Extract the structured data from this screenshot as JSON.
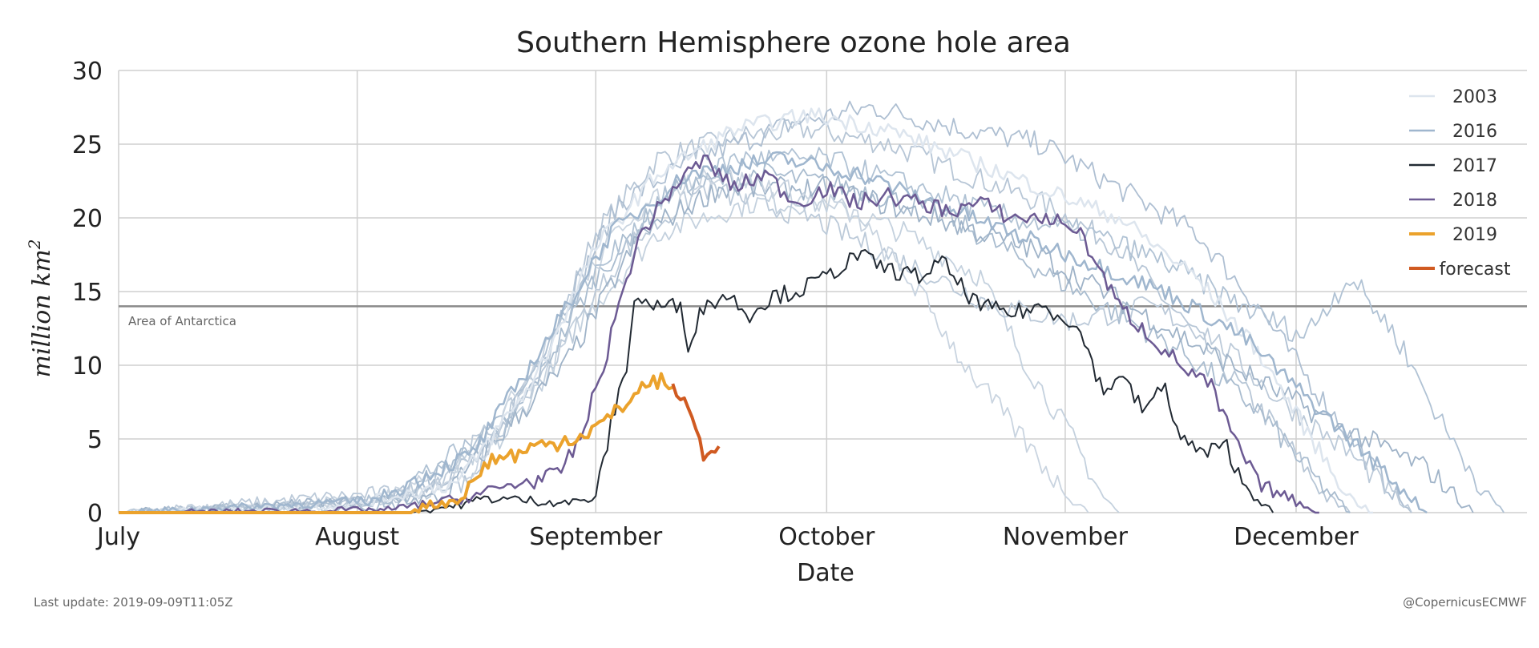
{
  "chart_data": {
    "type": "line",
    "title": "Southern Hemisphere ozone hole area",
    "xlabel": "Date",
    "ylabel": "million km",
    "ylabel_superscript": "2",
    "ylim": [
      0,
      30
    ],
    "yticks": [
      "0",
      "5",
      "10",
      "15",
      "20",
      "25",
      "30"
    ],
    "ytick_values": [
      0,
      5,
      10,
      15,
      20,
      25,
      30
    ],
    "xlim_days": [
      0,
      183
    ],
    "xticks": [
      "July",
      "August",
      "September",
      "October",
      "November",
      "December"
    ],
    "xtick_days": [
      0,
      31,
      62,
      92,
      123,
      153
    ],
    "reference_line": {
      "label": "Area of Antarctica",
      "value": 14,
      "color": "#8a8a8a"
    },
    "background_series": [
      {
        "name": "other years",
        "color": "#b7c6d6",
        "points": [
          [
            0,
            0
          ],
          [
            30,
            0.5
          ],
          [
            45,
            2
          ],
          [
            55,
            10
          ],
          [
            62,
            19
          ],
          [
            70,
            24
          ],
          [
            80,
            25.5
          ],
          [
            90,
            26
          ],
          [
            100,
            25
          ],
          [
            110,
            23
          ],
          [
            120,
            21
          ],
          [
            130,
            18
          ],
          [
            140,
            12
          ],
          [
            150,
            6
          ],
          [
            157,
            1
          ],
          [
            160,
            0
          ]
        ]
      },
      {
        "name": "other years",
        "color": "#aebfd2",
        "points": [
          [
            0,
            0
          ],
          [
            35,
            0.8
          ],
          [
            48,
            4
          ],
          [
            58,
            14
          ],
          [
            65,
            21
          ],
          [
            75,
            24
          ],
          [
            88,
            26.5
          ],
          [
            98,
            27.5
          ],
          [
            110,
            26
          ],
          [
            120,
            25
          ],
          [
            130,
            22
          ],
          [
            140,
            19
          ],
          [
            148,
            14
          ],
          [
            156,
            8
          ],
          [
            163,
            3
          ],
          [
            168,
            0
          ]
        ]
      },
      {
        "name": "other years",
        "color": "#c4d1de",
        "points": [
          [
            0,
            0
          ],
          [
            38,
            1
          ],
          [
            50,
            5
          ],
          [
            60,
            13
          ],
          [
            70,
            19
          ],
          [
            82,
            21
          ],
          [
            92,
            21
          ],
          [
            102,
            19
          ],
          [
            112,
            16
          ],
          [
            118,
            10
          ],
          [
            124,
            5
          ],
          [
            128,
            1
          ],
          [
            130,
            0
          ]
        ]
      },
      {
        "name": "other years",
        "color": "#a9bccf",
        "points": [
          [
            0,
            0
          ],
          [
            36,
            0.5
          ],
          [
            52,
            7
          ],
          [
            62,
            16
          ],
          [
            72,
            22
          ],
          [
            84,
            23
          ],
          [
            96,
            22
          ],
          [
            108,
            20
          ],
          [
            118,
            17
          ],
          [
            128,
            14
          ],
          [
            138,
            11
          ],
          [
            148,
            7
          ],
          [
            156,
            2
          ],
          [
            160,
            0
          ]
        ]
      },
      {
        "name": "other years",
        "color": "#bccad9",
        "points": [
          [
            0,
            0
          ],
          [
            40,
            1.5
          ],
          [
            55,
            9
          ],
          [
            66,
            18
          ],
          [
            76,
            22
          ],
          [
            90,
            20
          ],
          [
            102,
            17
          ],
          [
            114,
            14
          ],
          [
            124,
            13
          ],
          [
            134,
            14
          ],
          [
            142,
            12
          ],
          [
            150,
            8
          ],
          [
            160,
            4
          ],
          [
            168,
            0
          ]
        ]
      },
      {
        "name": "other years",
        "color": "#9fb3c8",
        "points": [
          [
            0,
            0
          ],
          [
            42,
            1
          ],
          [
            58,
            10
          ],
          [
            68,
            19
          ],
          [
            78,
            22
          ],
          [
            92,
            22
          ],
          [
            106,
            20
          ],
          [
            118,
            18
          ],
          [
            128,
            15
          ],
          [
            138,
            12
          ],
          [
            148,
            9
          ],
          [
            158,
            6
          ],
          [
            170,
            3
          ],
          [
            176,
            0
          ]
        ]
      },
      {
        "name": "other years",
        "color": "#c9d4e0",
        "points": [
          [
            0,
            0
          ],
          [
            32,
            0.6
          ],
          [
            46,
            3
          ],
          [
            56,
            12
          ],
          [
            66,
            20
          ],
          [
            76,
            23
          ],
          [
            86,
            22
          ],
          [
            96,
            20
          ],
          [
            104,
            15
          ],
          [
            110,
            10
          ],
          [
            116,
            6
          ],
          [
            122,
            2
          ],
          [
            126,
            0
          ]
        ]
      },
      {
        "name": "other years",
        "color": "#b0c2d4",
        "points": [
          [
            0,
            0
          ],
          [
            34,
            0.8
          ],
          [
            50,
            6
          ],
          [
            60,
            15
          ],
          [
            70,
            21
          ],
          [
            80,
            24
          ],
          [
            92,
            24
          ],
          [
            104,
            22
          ],
          [
            116,
            20
          ],
          [
            126,
            19
          ],
          [
            136,
            17
          ],
          [
            146,
            14
          ],
          [
            154,
            12
          ],
          [
            160,
            16
          ],
          [
            166,
            12
          ],
          [
            172,
            6
          ],
          [
            178,
            1
          ],
          [
            180,
            0
          ]
        ]
      }
    ],
    "series": [
      {
        "name": "2003",
        "color": "#dde5ee",
        "width": 2.5,
        "points": [
          [
            0,
            0
          ],
          [
            30,
            0.5
          ],
          [
            44,
            2
          ],
          [
            54,
            9
          ],
          [
            62,
            18
          ],
          [
            70,
            23
          ],
          [
            80,
            26
          ],
          [
            90,
            27
          ],
          [
            100,
            26
          ],
          [
            110,
            24
          ],
          [
            120,
            22
          ],
          [
            130,
            20
          ],
          [
            140,
            16
          ],
          [
            148,
            11
          ],
          [
            155,
            5
          ],
          [
            160,
            1
          ],
          [
            163,
            0
          ]
        ]
      },
      {
        "name": "2016",
        "color": "#9fb6ce",
        "width": 2.5,
        "points": [
          [
            0,
            0
          ],
          [
            33,
            0.8
          ],
          [
            46,
            4
          ],
          [
            56,
            12
          ],
          [
            64,
            19
          ],
          [
            74,
            23
          ],
          [
            86,
            24
          ],
          [
            96,
            23
          ],
          [
            106,
            21
          ],
          [
            116,
            19
          ],
          [
            126,
            17
          ],
          [
            136,
            15
          ],
          [
            146,
            12
          ],
          [
            154,
            8
          ],
          [
            160,
            5
          ],
          [
            166,
            2
          ],
          [
            170,
            0
          ]
        ]
      },
      {
        "name": "2017",
        "color": "#222a33",
        "width": 2,
        "points": [
          [
            0,
            0
          ],
          [
            38,
            0
          ],
          [
            44,
            0.5
          ],
          [
            48,
            1
          ],
          [
            54,
            0.8
          ],
          [
            59,
            0.7
          ],
          [
            62,
            1
          ],
          [
            64,
            6
          ],
          [
            66,
            10
          ],
          [
            67,
            14.5
          ],
          [
            70,
            14
          ],
          [
            73,
            14
          ],
          [
            74,
            11.5
          ],
          [
            76,
            14
          ],
          [
            79,
            14.8
          ],
          [
            82,
            13.5
          ],
          [
            85,
            14.7
          ],
          [
            88,
            15
          ],
          [
            92,
            16
          ],
          [
            96,
            17.5
          ],
          [
            100,
            16.5
          ],
          [
            104,
            16
          ],
          [
            107,
            17
          ],
          [
            110,
            15
          ],
          [
            112,
            14
          ],
          [
            116,
            13.5
          ],
          [
            120,
            14
          ],
          [
            124,
            13
          ],
          [
            126,
            11
          ],
          [
            128,
            8
          ],
          [
            130,
            9.5
          ],
          [
            133,
            7
          ],
          [
            136,
            8.5
          ],
          [
            138,
            5
          ],
          [
            141,
            4
          ],
          [
            144,
            4.5
          ],
          [
            146,
            2
          ],
          [
            148,
            1
          ],
          [
            150,
            0
          ]
        ]
      },
      {
        "name": "2018",
        "color": "#6c5a93",
        "width": 2.5,
        "points": [
          [
            0,
            0
          ],
          [
            35,
            0.2
          ],
          [
            45,
            1
          ],
          [
            52,
            2
          ],
          [
            57,
            2.5
          ],
          [
            60,
            5
          ],
          [
            63,
            10
          ],
          [
            66,
            16
          ],
          [
            68,
            19
          ],
          [
            72,
            22
          ],
          [
            76,
            24
          ],
          [
            80,
            22
          ],
          [
            84,
            23
          ],
          [
            88,
            21
          ],
          [
            92,
            22
          ],
          [
            96,
            21
          ],
          [
            100,
            21.5
          ],
          [
            104,
            21
          ],
          [
            108,
            20.5
          ],
          [
            112,
            21
          ],
          [
            116,
            20
          ],
          [
            120,
            20
          ],
          [
            124,
            19.5
          ],
          [
            126,
            18
          ],
          [
            130,
            14
          ],
          [
            134,
            12
          ],
          [
            138,
            10
          ],
          [
            142,
            8.5
          ],
          [
            144,
            6
          ],
          [
            146,
            4
          ],
          [
            148,
            2
          ],
          [
            150,
            1.5
          ],
          [
            152,
            1
          ],
          [
            156,
            0
          ]
        ]
      },
      {
        "name": "2019",
        "color": "#eba22c",
        "width": 4,
        "points": [
          [
            0,
            0
          ],
          [
            38,
            0
          ],
          [
            40,
            0.5
          ],
          [
            44,
            0.8
          ],
          [
            46,
            2
          ],
          [
            48,
            3.5
          ],
          [
            50,
            3.8
          ],
          [
            52,
            4
          ],
          [
            54,
            4.5
          ],
          [
            56,
            4.6
          ],
          [
            58,
            5
          ],
          [
            60,
            5.2
          ],
          [
            62,
            5.8
          ],
          [
            64,
            6.5
          ],
          [
            66,
            7.5
          ],
          [
            68,
            8.5
          ],
          [
            70,
            9
          ],
          [
            72,
            8.5
          ]
        ]
      },
      {
        "name": "forecast",
        "color": "#d05a21",
        "width": 4,
        "points": [
          [
            72,
            8.5
          ],
          [
            73.5,
            7.5
          ],
          [
            74.5,
            6.5
          ],
          [
            75.5,
            5
          ],
          [
            76,
            3.5
          ],
          [
            77,
            4.2
          ],
          [
            78,
            4.5
          ]
        ]
      }
    ],
    "legend_position": "top-right",
    "legend": [
      "2003",
      "2016",
      "2017",
      "2018",
      "2019",
      "forecast"
    ],
    "footer_left": "Last update: 2019-09-09T11:05Z",
    "footer_right": "@CopernicusECMWF"
  }
}
